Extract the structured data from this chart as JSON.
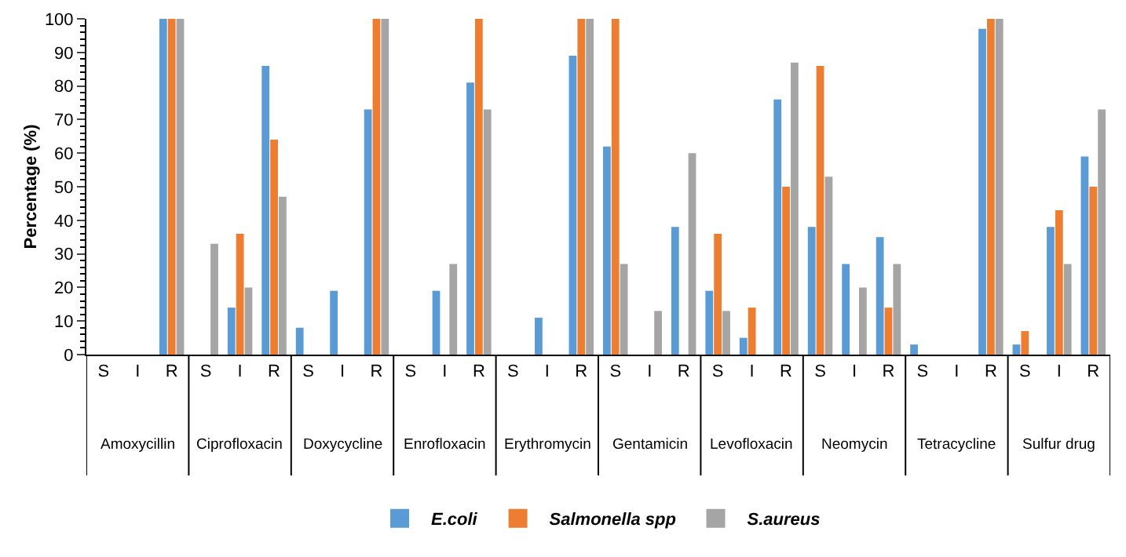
{
  "chart_data": {
    "type": "bar",
    "ylabel": "Percentage (%)",
    "categories": [
      "S",
      "I",
      "R",
      "S",
      "I",
      "R",
      "S",
      "I",
      "R",
      "S",
      "I",
      "R",
      "S",
      "I",
      "R",
      "S",
      "I",
      "R",
      "S",
      "I",
      "R",
      "S",
      "I",
      "R",
      "S",
      "I",
      "R",
      "S",
      "I",
      "R"
    ],
    "annotations": [
      "Amoxycillin",
      "Ciprofloxacin",
      "Doxycycline",
      "Enrofloxacin",
      "Erythromycin",
      "Gentamicin",
      "Levofloxacin",
      "Neomycin",
      "Tetracycline",
      "Sulfur drug"
    ],
    "series": [
      {
        "name": "E.coli",
        "color": "#5b9bd5",
        "values": [
          0,
          0,
          100,
          0,
          14,
          86,
          8,
          19,
          73,
          0,
          19,
          81,
          0,
          11,
          89,
          62,
          0,
          38,
          19,
          5,
          76,
          38,
          27,
          35,
          3,
          0,
          97,
          3,
          38,
          59
        ]
      },
      {
        "name": "Salmonella spp",
        "color": "#ed7d31",
        "values": [
          0,
          0,
          100,
          0,
          36,
          64,
          0,
          0,
          100,
          0,
          0,
          100,
          0,
          0,
          100,
          100,
          0,
          0,
          36,
          14,
          50,
          86,
          0,
          14,
          0,
          0,
          100,
          7,
          43,
          50
        ]
      },
      {
        "name": "S.aureus",
        "color": "#a5a5a5",
        "values": [
          0,
          0,
          100,
          33,
          20,
          47,
          0,
          0,
          100,
          0,
          27,
          73,
          0,
          0,
          100,
          27,
          13,
          60,
          13,
          0,
          87,
          53,
          20,
          27,
          0,
          0,
          100,
          0,
          27,
          73
        ]
      }
    ],
    "ylim": [
      0,
      100
    ],
    "yticks": [
      0,
      10,
      20,
      30,
      40,
      50,
      60,
      70,
      80,
      90,
      100
    ],
    "grid": false,
    "legend": "bottom"
  }
}
